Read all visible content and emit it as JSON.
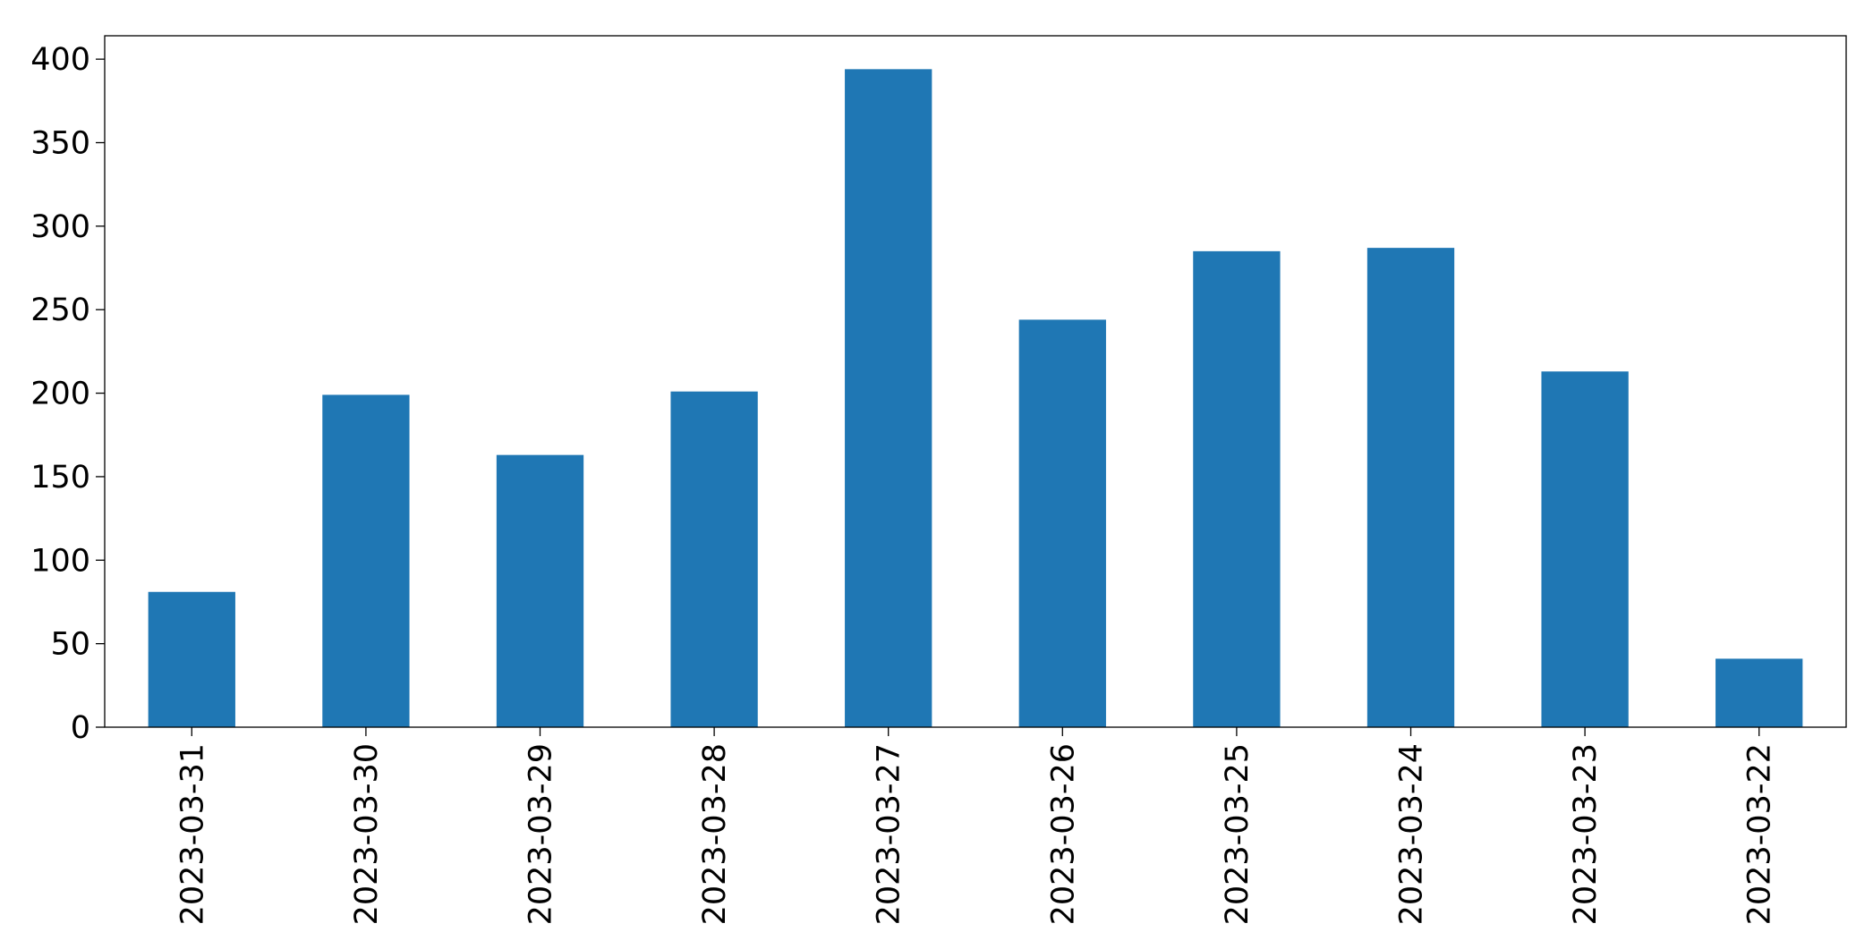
{
  "chart_data": {
    "type": "bar",
    "categories": [
      "2023-03-31",
      "2023-03-30",
      "2023-03-29",
      "2023-03-28",
      "2023-03-27",
      "2023-03-26",
      "2023-03-25",
      "2023-03-24",
      "2023-03-23",
      "2023-03-22"
    ],
    "values": [
      81,
      199,
      163,
      201,
      394,
      244,
      285,
      287,
      213,
      41
    ],
    "color": "#1f77b4",
    "ylim": [
      0,
      414
    ],
    "yticks": [
      0,
      50,
      100,
      150,
      200,
      250,
      300,
      350,
      400
    ],
    "grid": false
  }
}
